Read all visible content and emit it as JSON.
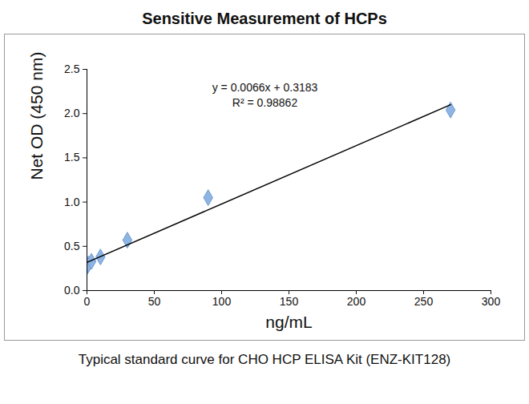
{
  "chart_data": {
    "type": "scatter",
    "title": "Sensitive Measurement of HCPs",
    "caption": "Typical standard curve for CHO HCP ELISA Kit (ENZ-KIT128)",
    "x_label": "ng/mL",
    "y_label": "Net OD (450 nm)",
    "annotations": [
      "y = 0.0066x + 0.3183",
      "R² = 0.98862"
    ],
    "x": [
      0,
      0.37,
      1.1,
      3.3,
      10,
      30,
      90,
      270
    ],
    "series": [
      {
        "type": "scatter",
        "color": "#8db4e2",
        "marker": "diamond",
        "values": [
          0.27,
          0.28,
          0.3,
          0.33,
          0.38,
          0.57,
          1.05,
          2.04
        ]
      },
      {
        "type": "line",
        "color": "#000000",
        "line_style": "solid",
        "x": [
          0,
          270
        ],
        "values": [
          0.3183,
          2.1003
        ]
      }
    ],
    "xlim": [
      0,
      300
    ],
    "xticks": [
      0,
      50,
      100,
      150,
      200,
      250,
      300
    ],
    "ylim": [
      0,
      2.5
    ],
    "yticks": [
      0,
      0.5,
      1,
      1.5,
      2,
      2.5
    ],
    "grid": false
  }
}
